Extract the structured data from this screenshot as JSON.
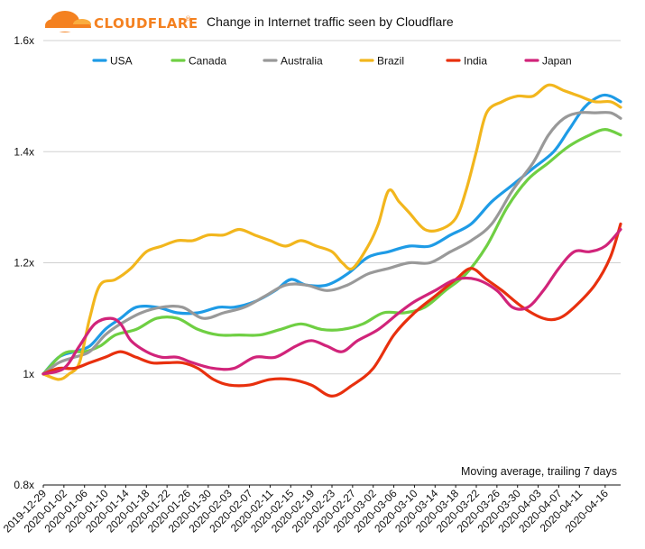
{
  "logo": {
    "text": "CLOUDFLARE",
    "trademark": "®",
    "color": "#f48120"
  },
  "chart_data": {
    "type": "line",
    "title": "Change in Internet traffic seen by Cloudflare",
    "note": "Moving average, trailing 7 days",
    "y_ticks": [
      {
        "value": 0.8,
        "label": "0.8x"
      },
      {
        "value": 1.0,
        "label": "1x"
      },
      {
        "value": 1.2,
        "label": "1.2x"
      },
      {
        "value": 1.4,
        "label": "1.4x"
      },
      {
        "value": 1.6,
        "label": "1.6x"
      }
    ],
    "ylim": [
      0.8,
      1.6
    ],
    "grid": "horizontal",
    "legend_position": "top",
    "x_range": [
      "2019-12-29",
      "2020-04-19"
    ],
    "x_tick_labels": [
      "2019-12-29",
      "2020-01-02",
      "2020-01-06",
      "2020-01-10",
      "2020-01-14",
      "2020-01-18",
      "2020-01-22",
      "2020-01-26",
      "2020-01-30",
      "2020-02-03",
      "2020-02-07",
      "2020-02-11",
      "2020-02-15",
      "2020-02-19",
      "2020-02-23",
      "2020-02-27",
      "2020-03-02",
      "2020-03-06",
      "2020-03-10",
      "2020-03-14",
      "2020-03-18",
      "2020-03-22",
      "2020-03-26",
      "2020-03-30",
      "2020-04-03",
      "2020-04-07",
      "2020-04-11",
      "2020-04-16"
    ],
    "series": [
      {
        "name": "USA",
        "color": "#1e9be6",
        "points": [
          [
            "2019-12-29",
            1.0
          ],
          [
            "2020-01-01",
            1.03
          ],
          [
            "2020-01-04",
            1.04
          ],
          [
            "2020-01-07",
            1.05
          ],
          [
            "2020-01-10",
            1.08
          ],
          [
            "2020-01-13",
            1.1
          ],
          [
            "2020-01-16",
            1.12
          ],
          [
            "2020-01-20",
            1.12
          ],
          [
            "2020-01-24",
            1.11
          ],
          [
            "2020-01-28",
            1.11
          ],
          [
            "2020-02-01",
            1.12
          ],
          [
            "2020-02-04",
            1.12
          ],
          [
            "2020-02-08",
            1.13
          ],
          [
            "2020-02-12",
            1.15
          ],
          [
            "2020-02-15",
            1.17
          ],
          [
            "2020-02-18",
            1.16
          ],
          [
            "2020-02-22",
            1.16
          ],
          [
            "2020-02-26",
            1.18
          ],
          [
            "2020-03-01",
            1.21
          ],
          [
            "2020-03-05",
            1.22
          ],
          [
            "2020-03-09",
            1.23
          ],
          [
            "2020-03-13",
            1.23
          ],
          [
            "2020-03-17",
            1.25
          ],
          [
            "2020-03-21",
            1.27
          ],
          [
            "2020-03-25",
            1.31
          ],
          [
            "2020-03-29",
            1.34
          ],
          [
            "2020-04-02",
            1.37
          ],
          [
            "2020-04-06",
            1.4
          ],
          [
            "2020-04-09",
            1.44
          ],
          [
            "2020-04-12",
            1.48
          ],
          [
            "2020-04-15",
            1.5
          ],
          [
            "2020-04-17",
            1.5
          ],
          [
            "2020-04-19",
            1.49
          ]
        ]
      },
      {
        "name": "Canada",
        "color": "#6fcf43",
        "points": [
          [
            "2019-12-29",
            1.0
          ],
          [
            "2020-01-01",
            1.03
          ],
          [
            "2020-01-03",
            1.04
          ],
          [
            "2020-01-06",
            1.04
          ],
          [
            "2020-01-09",
            1.05
          ],
          [
            "2020-01-12",
            1.07
          ],
          [
            "2020-01-16",
            1.08
          ],
          [
            "2020-01-20",
            1.1
          ],
          [
            "2020-01-24",
            1.1
          ],
          [
            "2020-01-28",
            1.08
          ],
          [
            "2020-02-01",
            1.07
          ],
          [
            "2020-02-05",
            1.07
          ],
          [
            "2020-02-09",
            1.07
          ],
          [
            "2020-02-13",
            1.08
          ],
          [
            "2020-02-17",
            1.09
          ],
          [
            "2020-02-21",
            1.08
          ],
          [
            "2020-02-25",
            1.08
          ],
          [
            "2020-02-29",
            1.09
          ],
          [
            "2020-03-04",
            1.11
          ],
          [
            "2020-03-08",
            1.11
          ],
          [
            "2020-03-12",
            1.12
          ],
          [
            "2020-03-16",
            1.15
          ],
          [
            "2020-03-20",
            1.18
          ],
          [
            "2020-03-24",
            1.23
          ],
          [
            "2020-03-28",
            1.3
          ],
          [
            "2020-04-01",
            1.35
          ],
          [
            "2020-04-05",
            1.38
          ],
          [
            "2020-04-09",
            1.41
          ],
          [
            "2020-04-13",
            1.43
          ],
          [
            "2020-04-16",
            1.44
          ],
          [
            "2020-04-19",
            1.43
          ]
        ]
      },
      {
        "name": "Australia",
        "color": "#999999",
        "points": [
          [
            "2019-12-29",
            1.0
          ],
          [
            "2020-01-01",
            1.02
          ],
          [
            "2020-01-04",
            1.03
          ],
          [
            "2020-01-07",
            1.04
          ],
          [
            "2020-01-10",
            1.07
          ],
          [
            "2020-01-13",
            1.09
          ],
          [
            "2020-01-17",
            1.11
          ],
          [
            "2020-01-21",
            1.12
          ],
          [
            "2020-01-25",
            1.12
          ],
          [
            "2020-01-29",
            1.1
          ],
          [
            "2020-02-02",
            1.11
          ],
          [
            "2020-02-06",
            1.12
          ],
          [
            "2020-02-10",
            1.14
          ],
          [
            "2020-02-14",
            1.16
          ],
          [
            "2020-02-18",
            1.16
          ],
          [
            "2020-02-22",
            1.15
          ],
          [
            "2020-02-26",
            1.16
          ],
          [
            "2020-03-01",
            1.18
          ],
          [
            "2020-03-05",
            1.19
          ],
          [
            "2020-03-09",
            1.2
          ],
          [
            "2020-03-13",
            1.2
          ],
          [
            "2020-03-17",
            1.22
          ],
          [
            "2020-03-21",
            1.24
          ],
          [
            "2020-03-25",
            1.27
          ],
          [
            "2020-03-29",
            1.33
          ],
          [
            "2020-04-02",
            1.38
          ],
          [
            "2020-04-05",
            1.43
          ],
          [
            "2020-04-08",
            1.46
          ],
          [
            "2020-04-11",
            1.47
          ],
          [
            "2020-04-14",
            1.47
          ],
          [
            "2020-04-17",
            1.47
          ],
          [
            "2020-04-19",
            1.46
          ]
        ]
      },
      {
        "name": "Brazil",
        "color": "#f2b61d",
        "points": [
          [
            "2019-12-29",
            1.0
          ],
          [
            "2020-01-01",
            0.99
          ],
          [
            "2020-01-03",
            1.0
          ],
          [
            "2020-01-05",
            1.02
          ],
          [
            "2020-01-07",
            1.1
          ],
          [
            "2020-01-09",
            1.16
          ],
          [
            "2020-01-12",
            1.17
          ],
          [
            "2020-01-15",
            1.19
          ],
          [
            "2020-01-18",
            1.22
          ],
          [
            "2020-01-21",
            1.23
          ],
          [
            "2020-01-24",
            1.24
          ],
          [
            "2020-01-27",
            1.24
          ],
          [
            "2020-01-30",
            1.25
          ],
          [
            "2020-02-02",
            1.25
          ],
          [
            "2020-02-05",
            1.26
          ],
          [
            "2020-02-08",
            1.25
          ],
          [
            "2020-02-11",
            1.24
          ],
          [
            "2020-02-14",
            1.23
          ],
          [
            "2020-02-17",
            1.24
          ],
          [
            "2020-02-20",
            1.23
          ],
          [
            "2020-02-23",
            1.22
          ],
          [
            "2020-02-25",
            1.2
          ],
          [
            "2020-02-27",
            1.19
          ],
          [
            "2020-03-01",
            1.23
          ],
          [
            "2020-03-03",
            1.27
          ],
          [
            "2020-03-05",
            1.33
          ],
          [
            "2020-03-07",
            1.31
          ],
          [
            "2020-03-09",
            1.29
          ],
          [
            "2020-03-12",
            1.26
          ],
          [
            "2020-03-15",
            1.26
          ],
          [
            "2020-03-18",
            1.28
          ],
          [
            "2020-03-20",
            1.33
          ],
          [
            "2020-03-22",
            1.4
          ],
          [
            "2020-03-24",
            1.47
          ],
          [
            "2020-03-27",
            1.49
          ],
          [
            "2020-03-30",
            1.5
          ],
          [
            "2020-04-02",
            1.5
          ],
          [
            "2020-04-05",
            1.52
          ],
          [
            "2020-04-08",
            1.51
          ],
          [
            "2020-04-11",
            1.5
          ],
          [
            "2020-04-14",
            1.49
          ],
          [
            "2020-04-17",
            1.49
          ],
          [
            "2020-04-19",
            1.48
          ]
        ]
      },
      {
        "name": "India",
        "color": "#e8300e",
        "points": [
          [
            "2019-12-29",
            1.0
          ],
          [
            "2020-01-01",
            1.01
          ],
          [
            "2020-01-04",
            1.01
          ],
          [
            "2020-01-07",
            1.02
          ],
          [
            "2020-01-10",
            1.03
          ],
          [
            "2020-01-13",
            1.04
          ],
          [
            "2020-01-16",
            1.03
          ],
          [
            "2020-01-19",
            1.02
          ],
          [
            "2020-01-22",
            1.02
          ],
          [
            "2020-01-25",
            1.02
          ],
          [
            "2020-01-28",
            1.01
          ],
          [
            "2020-01-31",
            0.99
          ],
          [
            "2020-02-03",
            0.98
          ],
          [
            "2020-02-07",
            0.98
          ],
          [
            "2020-02-11",
            0.99
          ],
          [
            "2020-02-15",
            0.99
          ],
          [
            "2020-02-19",
            0.98
          ],
          [
            "2020-02-23",
            0.96
          ],
          [
            "2020-02-27",
            0.98
          ],
          [
            "2020-03-02",
            1.01
          ],
          [
            "2020-03-06",
            1.07
          ],
          [
            "2020-03-10",
            1.11
          ],
          [
            "2020-03-14",
            1.14
          ],
          [
            "2020-03-18",
            1.17
          ],
          [
            "2020-03-21",
            1.19
          ],
          [
            "2020-03-24",
            1.17
          ],
          [
            "2020-03-27",
            1.15
          ],
          [
            "2020-03-31",
            1.12
          ],
          [
            "2020-04-04",
            1.1
          ],
          [
            "2020-04-07",
            1.1
          ],
          [
            "2020-04-10",
            1.12
          ],
          [
            "2020-04-14",
            1.16
          ],
          [
            "2020-04-17",
            1.21
          ],
          [
            "2020-04-19",
            1.27
          ]
        ]
      },
      {
        "name": "Japan",
        "color": "#d1247a",
        "points": [
          [
            "2019-12-29",
            1.0
          ],
          [
            "2020-01-02",
            1.01
          ],
          [
            "2020-01-05",
            1.05
          ],
          [
            "2020-01-08",
            1.09
          ],
          [
            "2020-01-11",
            1.1
          ],
          [
            "2020-01-13",
            1.09
          ],
          [
            "2020-01-15",
            1.06
          ],
          [
            "2020-01-18",
            1.04
          ],
          [
            "2020-01-21",
            1.03
          ],
          [
            "2020-01-24",
            1.03
          ],
          [
            "2020-01-27",
            1.02
          ],
          [
            "2020-01-31",
            1.01
          ],
          [
            "2020-02-04",
            1.01
          ],
          [
            "2020-02-08",
            1.03
          ],
          [
            "2020-02-12",
            1.03
          ],
          [
            "2020-02-16",
            1.05
          ],
          [
            "2020-02-19",
            1.06
          ],
          [
            "2020-02-22",
            1.05
          ],
          [
            "2020-02-25",
            1.04
          ],
          [
            "2020-02-28",
            1.06
          ],
          [
            "2020-03-03",
            1.08
          ],
          [
            "2020-03-07",
            1.11
          ],
          [
            "2020-03-10",
            1.13
          ],
          [
            "2020-03-14",
            1.15
          ],
          [
            "2020-03-18",
            1.17
          ],
          [
            "2020-03-22",
            1.17
          ],
          [
            "2020-03-26",
            1.15
          ],
          [
            "2020-03-29",
            1.12
          ],
          [
            "2020-04-01",
            1.12
          ],
          [
            "2020-04-04",
            1.15
          ],
          [
            "2020-04-07",
            1.19
          ],
          [
            "2020-04-10",
            1.22
          ],
          [
            "2020-04-13",
            1.22
          ],
          [
            "2020-04-16",
            1.23
          ],
          [
            "2020-04-19",
            1.26
          ]
        ]
      }
    ]
  }
}
